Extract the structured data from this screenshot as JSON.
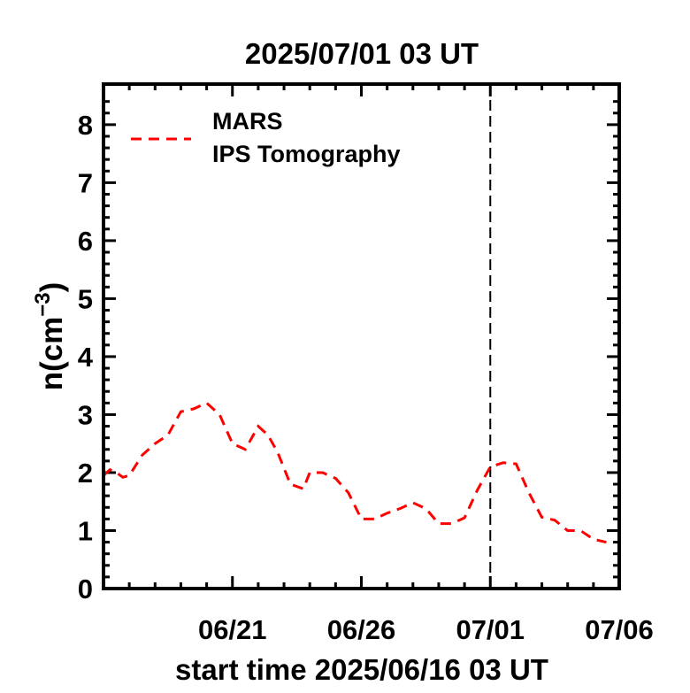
{
  "chart_data": {
    "type": "line",
    "title": "2025/07/01 03 UT",
    "xlabel": "start time 2025/06/16 03 UT",
    "ylabel_main": "n",
    "ylabel_unit": "cm",
    "ylabel_exp": "−3",
    "ylim": [
      0,
      8.7
    ],
    "xlim": [
      "2025-06-16 03:00",
      "2025-07-06 03:00"
    ],
    "x_tick_labels": [
      "06/21",
      "06/26",
      "07/01",
      "07/06"
    ],
    "x_tick_dates": [
      "2025-06-21 03:00",
      "2025-06-26 03:00",
      "2025-07-01 03:00",
      "2025-07-06 03:00"
    ],
    "y_tick_labels": [
      "0",
      "1",
      "2",
      "3",
      "4",
      "5",
      "6",
      "7",
      "8"
    ],
    "y_ticks": [
      0,
      1,
      2,
      3,
      4,
      5,
      6,
      7,
      8
    ],
    "legend": {
      "position": "top-left",
      "line1": "MARS",
      "line2": "IPS Tomography"
    },
    "marker_line": {
      "x": "2025-07-01 03:00",
      "style": "dashed",
      "color": "#000000"
    },
    "series": [
      {
        "name": "MARS IPS Tomography",
        "color": "#ff0000",
        "style": "dashed",
        "x": [
          "2025-06-16 03:00",
          "2025-06-16 09:00",
          "2025-06-16 15:00",
          "2025-06-16 21:00",
          "2025-06-17 03:00",
          "2025-06-17 15:00",
          "2025-06-18 03:00",
          "2025-06-18 15:00",
          "2025-06-19 03:00",
          "2025-06-19 15:00",
          "2025-06-20 03:00",
          "2025-06-20 15:00",
          "2025-06-21 03:00",
          "2025-06-21 15:00",
          "2025-06-22 03:00",
          "2025-06-22 12:00",
          "2025-06-22 21:00",
          "2025-06-23 09:00",
          "2025-06-23 21:00",
          "2025-06-24 03:00",
          "2025-06-24 15:00",
          "2025-06-25 03:00",
          "2025-06-25 15:00",
          "2025-06-26 03:00",
          "2025-06-26 15:00",
          "2025-06-27 03:00",
          "2025-06-27 15:00",
          "2025-06-28 03:00",
          "2025-06-28 15:00",
          "2025-06-29 03:00",
          "2025-06-29 15:00",
          "2025-06-30 03:00",
          "2025-06-30 15:00",
          "2025-07-01 03:00",
          "2025-07-01 15:00",
          "2025-07-02 03:00",
          "2025-07-02 15:00",
          "2025-07-03 03:00",
          "2025-07-03 15:00",
          "2025-07-04 03:00",
          "2025-07-04 15:00",
          "2025-07-05 03:00",
          "2025-07-05 15:00"
        ],
        "y": [
          1.95,
          2.05,
          2.0,
          1.92,
          1.95,
          2.3,
          2.5,
          2.65,
          3.05,
          3.1,
          3.2,
          3.0,
          2.5,
          2.4,
          2.8,
          2.65,
          2.35,
          1.8,
          1.72,
          2.0,
          2.0,
          1.9,
          1.65,
          1.2,
          1.2,
          1.3,
          1.38,
          1.48,
          1.38,
          1.12,
          1.12,
          1.22,
          1.7,
          2.1,
          2.17,
          2.15,
          1.65,
          1.23,
          1.18,
          1.0,
          1.0,
          0.85,
          0.8
        ]
      }
    ],
    "grid": false
  }
}
